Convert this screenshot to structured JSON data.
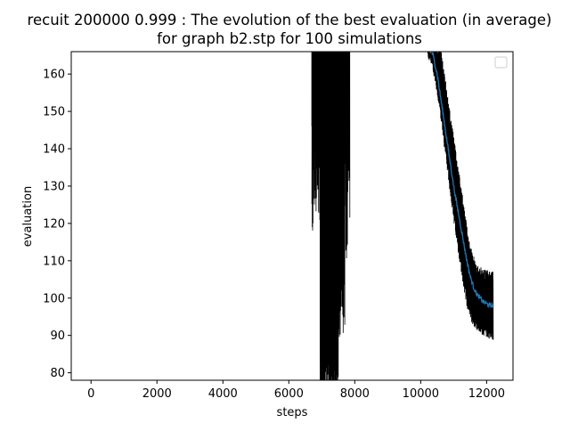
{
  "chart_data": {
    "type": "line",
    "title": "recuit 200000 0.999 : The evolution of the best evaluation (in average)",
    "subtitle": "for graph b2.stp for 100 simulations",
    "xlabel": "steps",
    "ylabel": "evaluation",
    "xlim": [
      -600,
      12800
    ],
    "ylim": [
      78,
      166
    ],
    "x_ticks": [
      0,
      2000,
      4000,
      6000,
      8000,
      10000,
      12000
    ],
    "y_ticks": [
      80,
      90,
      100,
      110,
      120,
      130,
      140,
      150,
      160
    ],
    "grid": false,
    "legend": {
      "placement": "top-right",
      "entries": []
    },
    "series": [
      {
        "style": "mean-line",
        "color": "#1f77b4",
        "x": [
          10350,
          10500,
          10600,
          10700,
          10800,
          10900,
          11000,
          11100,
          11200,
          11300,
          11400,
          11500,
          11600,
          11700,
          11800,
          11900,
          12000,
          12100,
          12200
        ],
        "y": [
          166,
          160,
          154,
          148,
          142,
          136,
          130,
          125,
          120,
          115,
          110,
          106,
          103,
          101,
          100,
          99,
          98.5,
          98,
          98
        ]
      },
      {
        "style": "spread-band",
        "color": "#000000",
        "x": [
          10200,
          10350,
          10500,
          10600,
          10700,
          10800,
          10900,
          11000,
          11100,
          11200,
          11300,
          11400,
          11500,
          11600,
          11700,
          11800,
          11900,
          12000,
          12100,
          12200
        ],
        "y_low": [
          166,
          163,
          156,
          150,
          143,
          136,
          129,
          122,
          116,
          110,
          104,
          99,
          96,
          94,
          93,
          92,
          91.5,
          91,
          90.5,
          90
        ],
        "y_high": [
          166,
          166,
          166,
          166,
          160,
          154,
          148,
          142,
          136,
          130,
          124,
          118,
          113,
          110,
          108,
          107,
          106.5,
          106,
          106,
          106
        ]
      },
      {
        "style": "noisy-early-runs",
        "color": "#000000",
        "x_start": 6700,
        "x_end": 7850
      }
    ]
  }
}
